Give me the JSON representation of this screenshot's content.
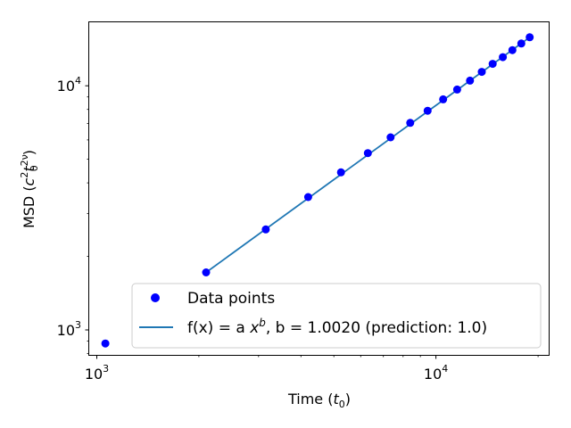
{
  "chart_data": {
    "type": "scatter",
    "title": "",
    "xscale": "log",
    "yscale": "log",
    "xlim": [
      950,
      21500
    ],
    "ylim": [
      790,
      18200
    ],
    "xlabel": {
      "prefix": "Time (",
      "var": "t",
      "sub": "0",
      "suffix": ")"
    },
    "ylabel": {
      "prefix": "MSD (",
      "var1": "c",
      "sup1": "2",
      "var2": "t",
      "sub2": "0",
      "sup2": "2ν",
      "suffix": ")"
    },
    "x_ticks": [
      {
        "value": 1000,
        "base": "10",
        "exp": "3"
      },
      {
        "value": 10000,
        "base": "10",
        "exp": "4"
      }
    ],
    "y_ticks": [
      {
        "value": 1000,
        "base": "10",
        "exp": "3"
      },
      {
        "value": 10000,
        "base": "10",
        "exp": "4"
      }
    ],
    "series": [
      {
        "name": "Data points",
        "kind": "scatter",
        "color": "#0000ff",
        "x": [
          1060,
          2100,
          3150,
          4200,
          5250,
          6300,
          7350,
          8400,
          9450,
          10500,
          11550,
          12600,
          13650,
          14700,
          15750,
          16800,
          17850,
          18900
        ],
        "y": [
          880,
          1720,
          2580,
          3500,
          4420,
          5300,
          6150,
          7050,
          7900,
          8800,
          9650,
          10500,
          11400,
          12300,
          13100,
          14000,
          14900,
          15800
        ]
      },
      {
        "name": "fit",
        "kind": "line",
        "color": "#1f77b4",
        "x": [
          2100,
          18900
        ],
        "y": [
          1720,
          15800
        ]
      }
    ],
    "legend": {
      "position": "lower-right",
      "entries": [
        {
          "label": "Data points"
        },
        {
          "prefix": "f(x) = a ",
          "var": "x",
          "sup": "b",
          "suffix": ", b = 1.0020 (prediction: 1.0)"
        }
      ]
    }
  }
}
